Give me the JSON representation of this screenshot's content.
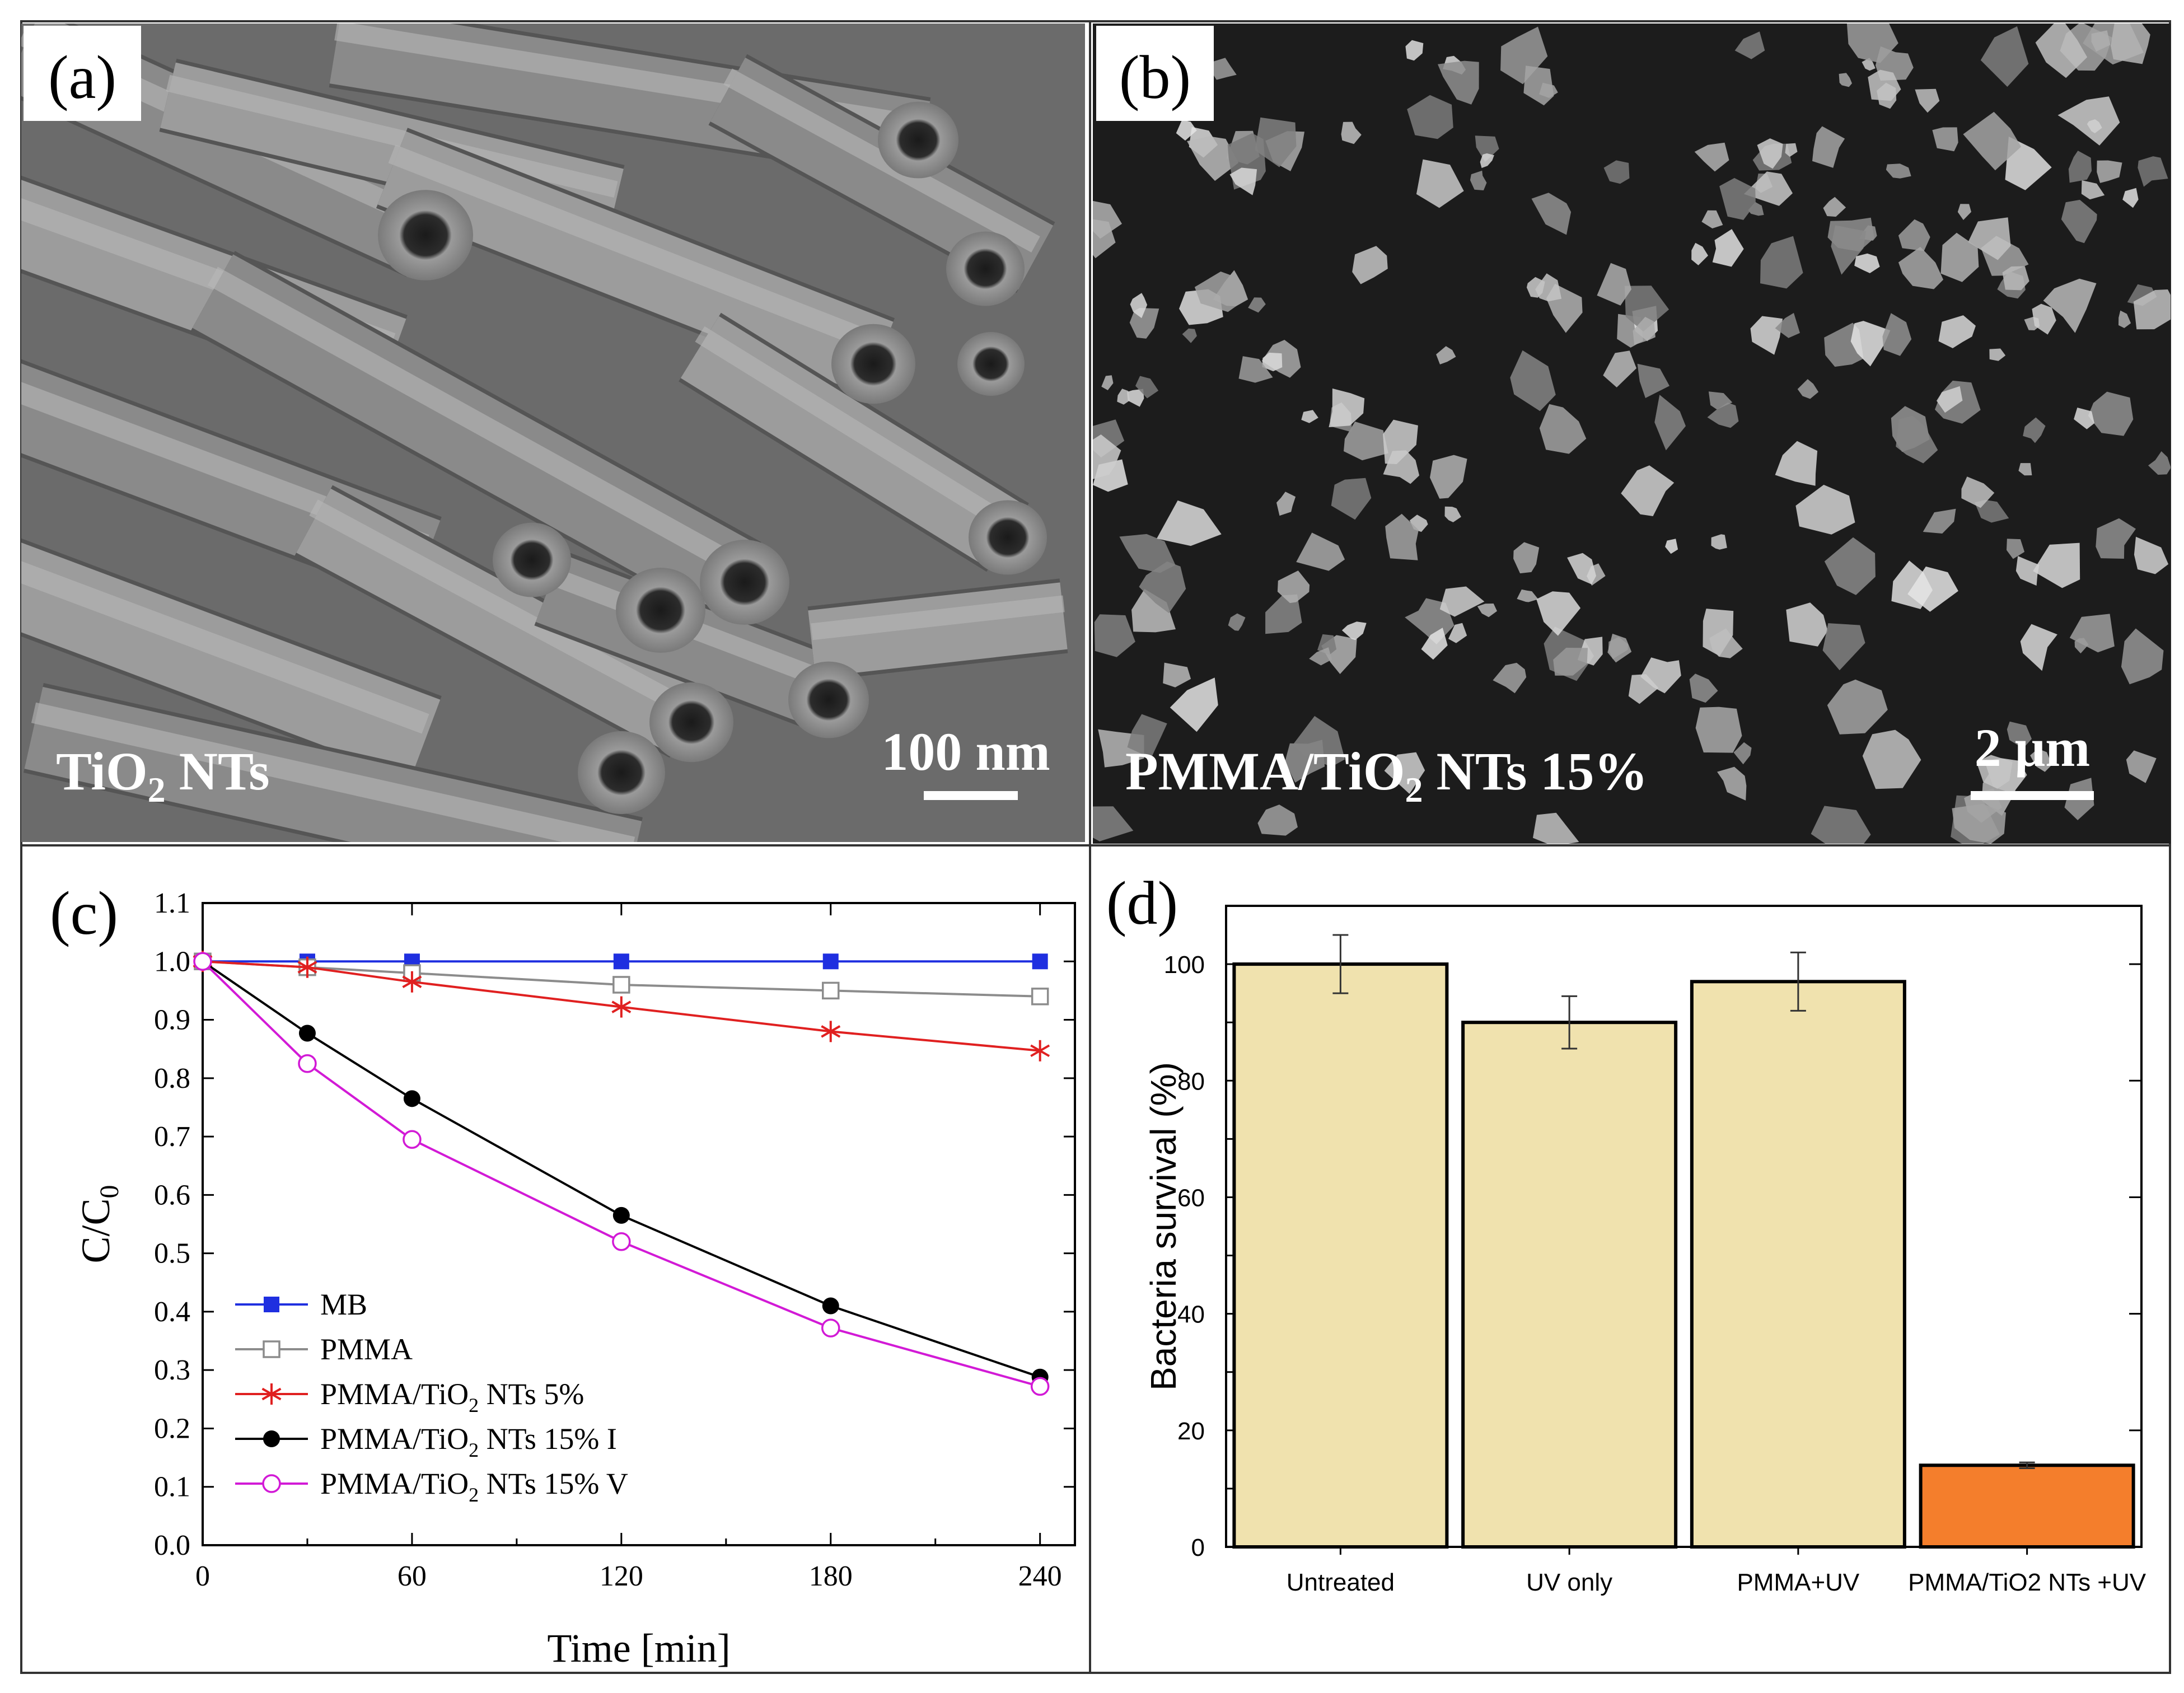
{
  "panels": {
    "a": {
      "tag": "(a)",
      "label_main": "TiO",
      "label_sub": "2",
      "label_tail": " NTs",
      "scale_bar": "100 nm"
    },
    "b": {
      "tag": "(b)",
      "label_main": "PMMA/TiO",
      "label_sub": "2",
      "label_tail": " NTs 15%",
      "scale_bar": "2 μm"
    }
  },
  "chart_data": [
    {
      "panel": "c",
      "tag": "(c)",
      "type": "line",
      "xlabel": "Time [min]",
      "ylabel_main": "C/C",
      "ylabel_sub": "0",
      "xlim": [
        0,
        250
      ],
      "ylim": [
        0.0,
        1.1
      ],
      "xticks": [
        0,
        60,
        120,
        180,
        240
      ],
      "yticks": [
        0.0,
        0.1,
        0.2,
        0.3,
        0.4,
        0.5,
        0.6,
        0.7,
        0.8,
        0.9,
        1.0,
        1.1
      ],
      "grid": false,
      "legend_position": "bottom-left",
      "series": [
        {
          "name": "MB",
          "name_main": "MB",
          "name_sub": "",
          "name_tail": "",
          "color": "#1f2fe0",
          "marker": "square-filled",
          "x": [
            0,
            30,
            60,
            120,
            180,
            240
          ],
          "y": [
            1.0,
            1.0,
            1.0,
            1.0,
            1.0,
            1.0
          ]
        },
        {
          "name": "PMMA",
          "name_main": "PMMA",
          "name_sub": "",
          "name_tail": "",
          "color": "#8c8c8c",
          "marker": "square-open",
          "x": [
            0,
            30,
            60,
            120,
            180,
            240
          ],
          "y": [
            1.0,
            0.99,
            0.98,
            0.96,
            0.95,
            0.94
          ]
        },
        {
          "name": "PMMA/TiO2 NTs 5%",
          "name_main": "PMMA/TiO",
          "name_sub": "2",
          "name_tail": " NTs 5%",
          "color": "#e02020",
          "marker": "star",
          "x": [
            0,
            30,
            60,
            120,
            180,
            240
          ],
          "y": [
            1.0,
            0.99,
            0.965,
            0.922,
            0.88,
            0.847
          ]
        },
        {
          "name": "PMMA/TiO2 NTs 15% I",
          "name_main": "PMMA/TiO",
          "name_sub": "2",
          "name_tail": " NTs 15% I",
          "color": "#000000",
          "marker": "circle-filled",
          "x": [
            0,
            30,
            60,
            120,
            180,
            240
          ],
          "y": [
            1.0,
            0.877,
            0.765,
            0.565,
            0.41,
            0.288
          ]
        },
        {
          "name": "PMMA/TiO2 NTs 15% V",
          "name_main": "PMMA/TiO",
          "name_sub": "2",
          "name_tail": " NTs 15% V",
          "color": "#d21ad6",
          "marker": "circle-open",
          "x": [
            0,
            30,
            60,
            120,
            180,
            240
          ],
          "y": [
            1.0,
            0.825,
            0.695,
            0.52,
            0.372,
            0.272
          ]
        }
      ]
    },
    {
      "panel": "d",
      "tag": "(d)",
      "type": "bar",
      "ylabel": "Bacteria survival (%)",
      "xlabel": "",
      "ylim": [
        0,
        110
      ],
      "yticks": [
        0,
        20,
        40,
        60,
        80,
        100
      ],
      "grid": false,
      "categories": [
        "Untreated",
        "UV only",
        "PMMA+UV",
        "PMMA/TiO2 NTs +UV"
      ],
      "values": [
        100,
        90,
        97,
        14
      ],
      "errors": [
        5,
        4.5,
        5,
        0.5
      ],
      "colors": [
        "#f0e2ae",
        "#f0e2ae",
        "#f0e2ae",
        "#f47e2c"
      ]
    }
  ]
}
